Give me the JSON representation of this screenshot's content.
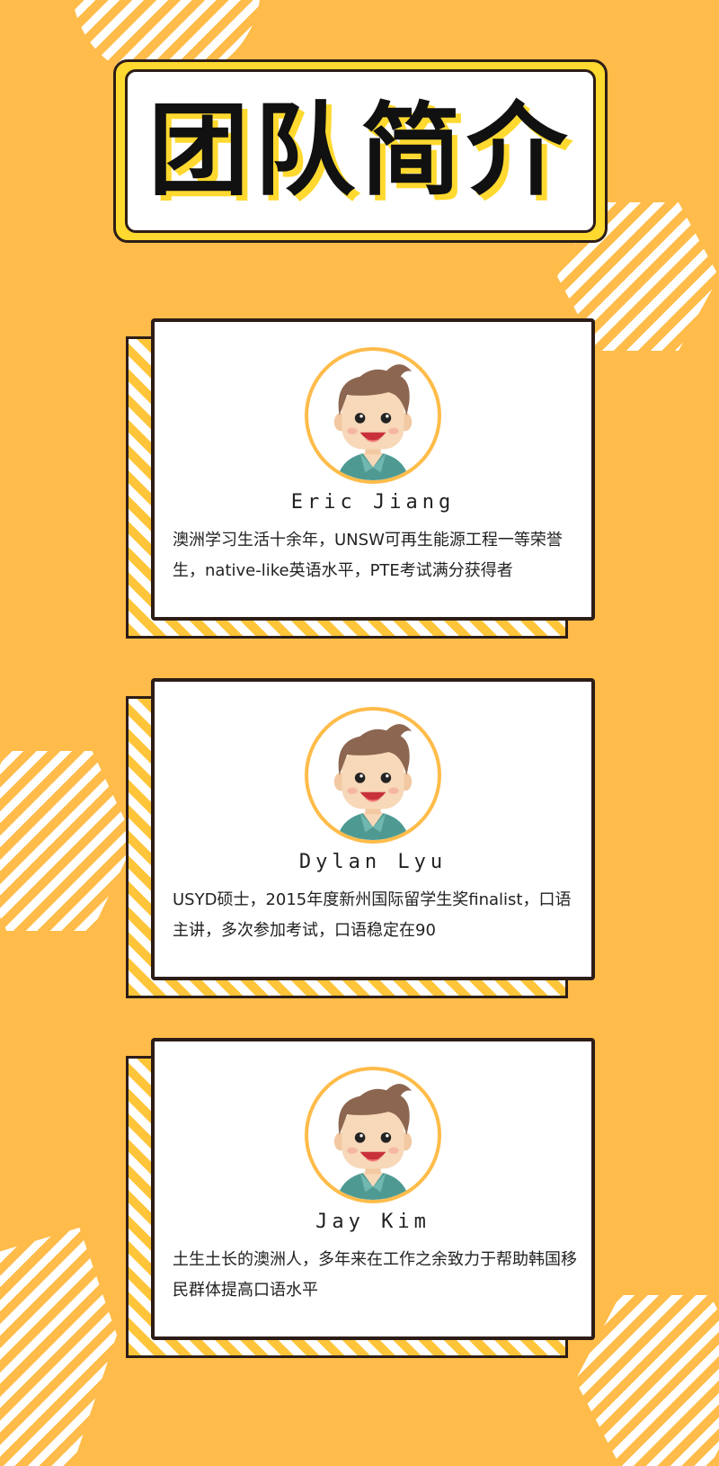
{
  "title": "团队简介",
  "colors": {
    "background": "#FFBC4A",
    "accent_yellow": "#FFD92F",
    "border": "#2D1D17"
  },
  "members": [
    {
      "name": "Eric Jiang",
      "desc": "澳洲学习生活十余年，UNSW可再生能源工程一等荣誉生，native-like英语水平，PTE考试满分获得者",
      "avatar_icon": "cartoon-boy-avatar"
    },
    {
      "name": "Dylan Lyu",
      "desc": "USYD硕士，2015年度新州国际留学生奖finalist，口语主讲，多次参加考试，口语稳定在90",
      "avatar_icon": "cartoon-boy-avatar"
    },
    {
      "name": "Jay Kim",
      "desc": "土生土长的澳洲人，多年来在工作之余致力于帮助韩国移民群体提高口语水平",
      "avatar_icon": "cartoon-boy-avatar"
    }
  ]
}
